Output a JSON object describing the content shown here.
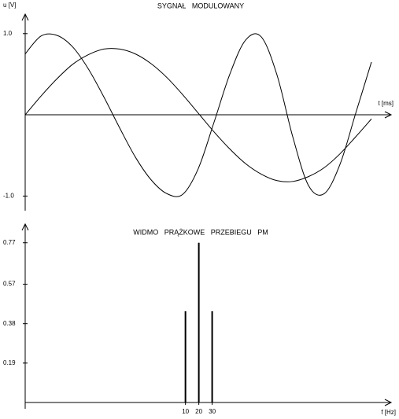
{
  "chart_data": [
    {
      "type": "line",
      "title": "SYGNAŁ MODULOWANY",
      "y_label": "u [V]",
      "x_label": "t [ms]",
      "x": [
        0,
        2,
        4,
        6,
        8,
        10,
        12,
        14,
        16,
        18,
        20,
        22,
        24,
        26,
        28,
        30,
        32,
        34,
        36,
        38,
        40,
        42,
        44
      ],
      "xlim": [
        0,
        46
      ],
      "ylim": [
        -1.18,
        1.24
      ],
      "yticks": [
        {
          "value": 1,
          "label": "1.0"
        },
        {
          "value": -1,
          "label": "-1.0"
        }
      ],
      "series": [
        {
          "color": "#000000",
          "values": [
            0.75,
            0.97,
            0.98,
            0.84,
            0.57,
            0.22,
            -0.16,
            -0.52,
            -0.8,
            -0.97,
            -0.98,
            -0.66,
            -0.09,
            0.5,
            0.92,
            0.96,
            0.49,
            -0.27,
            -0.87,
            -0.97,
            -0.61,
            0.02,
            0.65
          ]
        },
        {
          "color": "#000000",
          "values": [
            0,
            0.23,
            0.44,
            0.62,
            0.74,
            0.81,
            0.81,
            0.75,
            0.63,
            0.46,
            0.25,
            0.02,
            -0.21,
            -0.42,
            -0.6,
            -0.73,
            -0.81,
            -0.82,
            -0.76,
            -0.65,
            -0.48,
            -0.27,
            -0.05
          ]
        }
      ]
    },
    {
      "type": "bar",
      "title": "WIDMO PRĄŻKOWE PRZEBIEGU PM",
      "x_label": "f [Hz]",
      "x": [
        10,
        20,
        30
      ],
      "values": [
        0.44,
        0.77,
        0.44
      ],
      "color": "#000000",
      "xlim": [
        -110,
        164
      ],
      "xticks": [
        10,
        20,
        30
      ],
      "ylim": [
        0,
        0.86
      ],
      "yticks": [
        0.19,
        0.38,
        0.57,
        0.77
      ]
    }
  ]
}
